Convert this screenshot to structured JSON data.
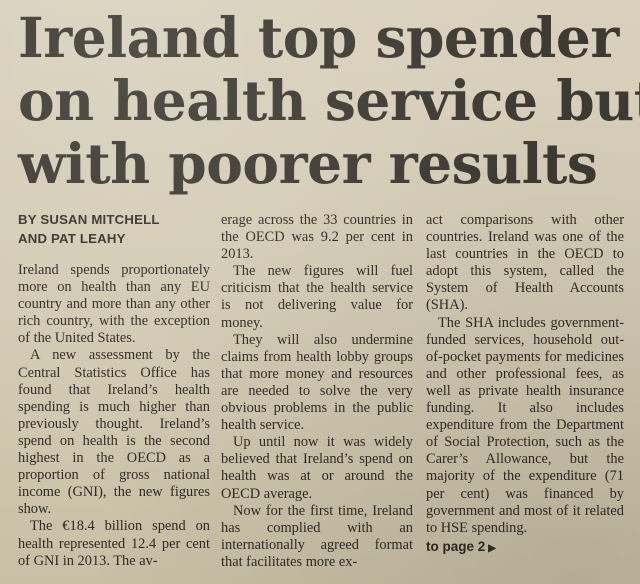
{
  "article": {
    "headline": [
      "Ireland top spender",
      "on health service but",
      "with poorer results"
    ],
    "byline": [
      "BY SUSAN MITCHELL",
      "AND PAT LEAHY"
    ],
    "paragraphs": [
      "Ireland spends proportionately more on health than any EU country and more than any other rich country, with the exception of the United States.",
      "A new assessment by the Central Statistics Office has found that Ireland’s health spending is much higher than previously thought. Ireland’s spend on health is the second highest in the OECD as a proportion of gross national income (GNI), the new figures show.",
      "The €18.4 billion spend on health represented 12.4 per cent of GNI in 2013. The average across the 33 countries in the OECD was 9.2 per cent in 2013.",
      "The new figures will fuel criticism that the health service is not delivering value for money.",
      "They will also undermine claims from health lobby groups that more money and resources are needed to solve the very obvious problems in the public health service.",
      "Up until now it was widely believed that Ireland’s spend on health was at or around the OECD average.",
      "Now for the first time, Ireland has complied with an internationally agreed format that facilitates more exact comparisons with other countries. Ireland was one of the last countries in the OECD to adopt this system, called the System of Health Accounts (SHA).",
      "The SHA includes government-funded services, household out-of-pocket payments for medicines and other professional fees, as well as private health insurance funding. It also includes expenditure from the Department of Social Protection, such as the Carer’s Allowance, but the majority of the expenditure (71 per cent) was financed by government and most of it related to HSE spending."
    ],
    "col1_p3_head": "The €18.4 billion spend on health represented 12.4 per cent of GNI in 2013. The av-",
    "col2_p3_tail": "erage across the 33 countries in the OECD was 9.2 per cent in 2013.",
    "col2_p7_head": "Now for the first time, Ireland has complied with an internationally agreed format that facilitates more ex-",
    "col3_p7_tail": "act comparisons with other countries. Ireland was one of the last countries in the OECD to adopt this system, called the System of Health Accounts (SHA).",
    "jump_label": "to page 2",
    "jump_icon": "triangle-right-icon"
  }
}
